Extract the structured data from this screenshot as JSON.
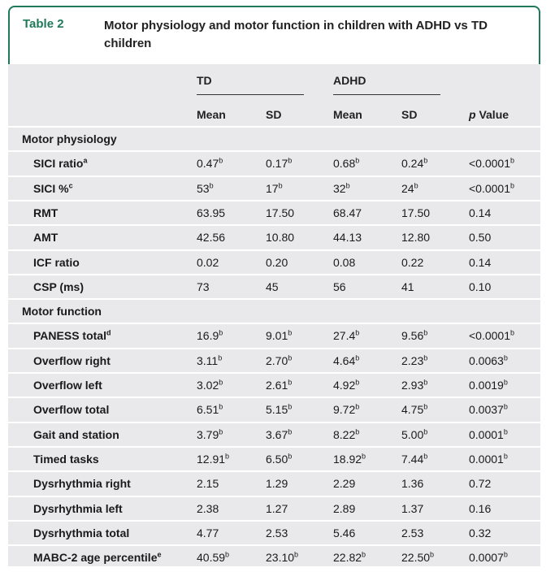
{
  "table": {
    "label": "Table 2",
    "title": "Motor physiology and motor function in children with ADHD vs TD children"
  },
  "header": {
    "group_td": "TD",
    "group_adhd": "ADHD",
    "mean": "Mean",
    "sd": "SD",
    "pvalue_p": "p",
    "pvalue_rest": " Value"
  },
  "sections": [
    {
      "title": "Motor physiology",
      "rows": [
        {
          "label": "SICI ratio",
          "label_sup": "a",
          "td_mean": "0.47",
          "td_mean_sup": "b",
          "td_sd": "0.17",
          "td_sd_sup": "b",
          "adhd_mean": "0.68",
          "adhd_mean_sup": "b",
          "adhd_sd": "0.24",
          "adhd_sd_sup": "b",
          "p": "<0.0001",
          "p_sup": "b"
        },
        {
          "label": "SICI %",
          "label_sup": "c",
          "td_mean": "53",
          "td_mean_sup": "b",
          "td_sd": "17",
          "td_sd_sup": "b",
          "adhd_mean": "32",
          "adhd_mean_sup": "b",
          "adhd_sd": "24",
          "adhd_sd_sup": "b",
          "p": "<0.0001",
          "p_sup": "b"
        },
        {
          "label": "RMT",
          "label_sup": "",
          "td_mean": "63.95",
          "td_mean_sup": "",
          "td_sd": "17.50",
          "td_sd_sup": "",
          "adhd_mean": "68.47",
          "adhd_mean_sup": "",
          "adhd_sd": "17.50",
          "adhd_sd_sup": "",
          "p": "0.14",
          "p_sup": ""
        },
        {
          "label": "AMT",
          "label_sup": "",
          "td_mean": "42.56",
          "td_mean_sup": "",
          "td_sd": "10.80",
          "td_sd_sup": "",
          "adhd_mean": "44.13",
          "adhd_mean_sup": "",
          "adhd_sd": "12.80",
          "adhd_sd_sup": "",
          "p": "0.50",
          "p_sup": ""
        },
        {
          "label": "ICF ratio",
          "label_sup": "",
          "td_mean": "0.02",
          "td_mean_sup": "",
          "td_sd": "0.20",
          "td_sd_sup": "",
          "adhd_mean": "0.08",
          "adhd_mean_sup": "",
          "adhd_sd": "0.22",
          "adhd_sd_sup": "",
          "p": "0.14",
          "p_sup": ""
        },
        {
          "label": "CSP (ms)",
          "label_sup": "",
          "td_mean": "73",
          "td_mean_sup": "",
          "td_sd": "45",
          "td_sd_sup": "",
          "adhd_mean": "56",
          "adhd_mean_sup": "",
          "adhd_sd": "41",
          "adhd_sd_sup": "",
          "p": "0.10",
          "p_sup": ""
        }
      ]
    },
    {
      "title": "Motor function",
      "rows": [
        {
          "label": "PANESS total",
          "label_sup": "d",
          "td_mean": "16.9",
          "td_mean_sup": "b",
          "td_sd": "9.01",
          "td_sd_sup": "b",
          "adhd_mean": "27.4",
          "adhd_mean_sup": "b",
          "adhd_sd": "9.56",
          "adhd_sd_sup": "b",
          "p": "<0.0001",
          "p_sup": "b"
        },
        {
          "label": "Overflow right",
          "label_sup": "",
          "td_mean": "3.11",
          "td_mean_sup": "b",
          "td_sd": "2.70",
          "td_sd_sup": "b",
          "adhd_mean": "4.64",
          "adhd_mean_sup": "b",
          "adhd_sd": "2.23",
          "adhd_sd_sup": "b",
          "p": "0.0063",
          "p_sup": "b"
        },
        {
          "label": "Overflow left",
          "label_sup": "",
          "td_mean": "3.02",
          "td_mean_sup": "b",
          "td_sd": "2.61",
          "td_sd_sup": "b",
          "adhd_mean": "4.92",
          "adhd_mean_sup": "b",
          "adhd_sd": "2.93",
          "adhd_sd_sup": "b",
          "p": "0.0019",
          "p_sup": "b"
        },
        {
          "label": "Overflow total",
          "label_sup": "",
          "td_mean": "6.51",
          "td_mean_sup": "b",
          "td_sd": "5.15",
          "td_sd_sup": "b",
          "adhd_mean": "9.72",
          "adhd_mean_sup": "b",
          "adhd_sd": "4.75",
          "adhd_sd_sup": "b",
          "p": "0.0037",
          "p_sup": "b"
        },
        {
          "label": "Gait and station",
          "label_sup": "",
          "td_mean": "3.79",
          "td_mean_sup": "b",
          "td_sd": "3.67",
          "td_sd_sup": "b",
          "adhd_mean": "8.22",
          "adhd_mean_sup": "b",
          "adhd_sd": "5.00",
          "adhd_sd_sup": "b",
          "p": "0.0001",
          "p_sup": "b"
        },
        {
          "label": "Timed tasks",
          "label_sup": "",
          "td_mean": "12.91",
          "td_mean_sup": "b",
          "td_sd": "6.50",
          "td_sd_sup": "b",
          "adhd_mean": "18.92",
          "adhd_mean_sup": "b",
          "adhd_sd": "7.44",
          "adhd_sd_sup": "b",
          "p": "0.0001",
          "p_sup": "b"
        },
        {
          "label": "Dysrhythmia right",
          "label_sup": "",
          "td_mean": "2.15",
          "td_mean_sup": "",
          "td_sd": "1.29",
          "td_sd_sup": "",
          "adhd_mean": "2.29",
          "adhd_mean_sup": "",
          "adhd_sd": "1.36",
          "adhd_sd_sup": "",
          "p": "0.72",
          "p_sup": ""
        },
        {
          "label": "Dysrhythmia left",
          "label_sup": "",
          "td_mean": "2.38",
          "td_mean_sup": "",
          "td_sd": "1.27",
          "td_sd_sup": "",
          "adhd_mean": "2.89",
          "adhd_mean_sup": "",
          "adhd_sd": "1.37",
          "adhd_sd_sup": "",
          "p": "0.16",
          "p_sup": ""
        },
        {
          "label": "Dysrhythmia total",
          "label_sup": "",
          "td_mean": "4.77",
          "td_mean_sup": "",
          "td_sd": "2.53",
          "td_sd_sup": "",
          "adhd_mean": "5.46",
          "adhd_mean_sup": "",
          "adhd_sd": "2.53",
          "adhd_sd_sup": "",
          "p": "0.32",
          "p_sup": ""
        },
        {
          "label": "MABC-2 age percentile",
          "label_sup": "e",
          "td_mean": "40.59",
          "td_mean_sup": "b",
          "td_sd": "23.10",
          "td_sd_sup": "b",
          "adhd_mean": "22.82",
          "adhd_mean_sup": "b",
          "adhd_sd": "22.50",
          "adhd_sd_sup": "b",
          "p": "0.0007",
          "p_sup": "b"
        }
      ]
    }
  ]
}
